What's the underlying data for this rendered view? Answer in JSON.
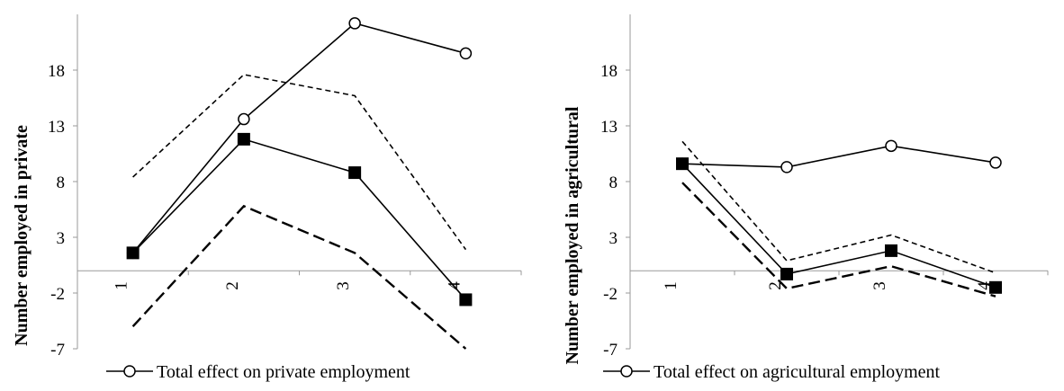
{
  "chart_data": [
    {
      "type": "line",
      "ylabel": "Number employed in private",
      "ylim": [
        -7,
        23
      ],
      "yticks": [
        -7,
        -2,
        3,
        8,
        13,
        18
      ],
      "categories": [
        "1",
        "2",
        "3",
        "4"
      ],
      "grid": false,
      "legend_position": "bottom",
      "series": [
        {
          "name": "Total effect on private employment",
          "values": [
            1.6,
            13.6,
            22.2,
            19.5
          ],
          "style": "open-circle-solid"
        },
        {
          "name": "",
          "values": [
            1.6,
            11.8,
            8.8,
            -2.6
          ],
          "style": "filled-square-solid"
        },
        {
          "name": "",
          "values": [
            8.4,
            17.6,
            15.7,
            1.9
          ],
          "style": "short-dash"
        },
        {
          "name": "",
          "values": [
            -5.0,
            5.8,
            1.6,
            -7.0
          ],
          "style": "long-dash"
        }
      ]
    },
    {
      "type": "line",
      "ylabel": "Number employed in agricultural",
      "ylim": [
        -7,
        23
      ],
      "yticks": [
        -7,
        -2,
        3,
        8,
        13,
        18
      ],
      "categories": [
        "1",
        "2",
        "3",
        "4"
      ],
      "grid": false,
      "legend_position": "bottom",
      "series": [
        {
          "name": "Total effect on agricultural employment",
          "values": [
            9.6,
            9.3,
            11.2,
            9.7
          ],
          "style": "open-circle-solid"
        },
        {
          "name": "",
          "values": [
            9.6,
            -0.3,
            1.8,
            -1.5
          ],
          "style": "filled-square-solid"
        },
        {
          "name": "",
          "values": [
            11.6,
            0.9,
            3.2,
            -0.2
          ],
          "style": "short-dash"
        },
        {
          "name": "",
          "values": [
            7.9,
            -1.6,
            0.4,
            -2.3
          ],
          "style": "long-dash"
        }
      ]
    }
  ],
  "colors": {
    "line": "#000000",
    "axis": "#9a9a9a",
    "background": "#ffffff"
  }
}
